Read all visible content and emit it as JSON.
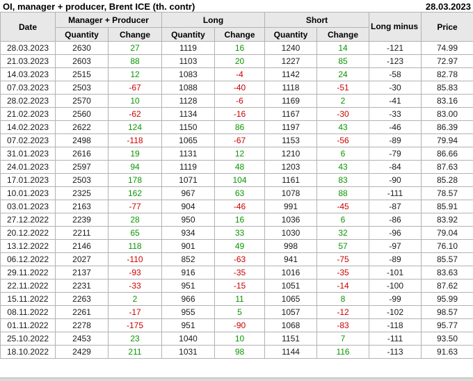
{
  "colors": {
    "positive_change": "#0a9600",
    "negative_change": "#cc0000",
    "header_bg": "#e8e8e8",
    "grid_line": "#b2b2b2",
    "text": "#1a1a1a"
  },
  "header_bar": {
    "title": "OI, manager + producer, Brent ICE (th. contr)",
    "report_date": "28.03.2023"
  },
  "chart_data": {
    "type": "table",
    "title": "OI, manager + producer, Brent ICE (th. contr)",
    "column_groups": [
      {
        "label": "Date",
        "colspan": 1
      },
      {
        "label": "Manager + Producer",
        "colspan": 2
      },
      {
        "label": "Long",
        "colspan": 2
      },
      {
        "label": "Short",
        "colspan": 2
      },
      {
        "label": "Long minus Short",
        "colspan": 1
      },
      {
        "label": "Price",
        "colspan": 1
      }
    ],
    "sub_headers": [
      "Quantity",
      "Change",
      "Quantity",
      "Change",
      "Quantity",
      "Change"
    ],
    "row_keys": [
      "date",
      "mp_quantity",
      "mp_change",
      "long_quantity",
      "long_change",
      "short_quantity",
      "short_change",
      "long_minus_short",
      "price"
    ],
    "signed_keys": [
      "mp_change",
      "long_change",
      "short_change"
    ],
    "rows": [
      {
        "date": "28.03.2023",
        "mp_quantity": "2630",
        "mp_change": "27",
        "long_quantity": "1119",
        "long_change": "16",
        "short_quantity": "1240",
        "short_change": "14",
        "long_minus_short": "-121",
        "price": "74.99"
      },
      {
        "date": "21.03.2023",
        "mp_quantity": "2603",
        "mp_change": "88",
        "long_quantity": "1103",
        "long_change": "20",
        "short_quantity": "1227",
        "short_change": "85",
        "long_minus_short": "-123",
        "price": "72.97"
      },
      {
        "date": "14.03.2023",
        "mp_quantity": "2515",
        "mp_change": "12",
        "long_quantity": "1083",
        "long_change": "-4",
        "short_quantity": "1142",
        "short_change": "24",
        "long_minus_short": "-58",
        "price": "82.78"
      },
      {
        "date": "07.03.2023",
        "mp_quantity": "2503",
        "mp_change": "-67",
        "long_quantity": "1088",
        "long_change": "-40",
        "short_quantity": "1118",
        "short_change": "-51",
        "long_minus_short": "-30",
        "price": "85.83"
      },
      {
        "date": "28.02.2023",
        "mp_quantity": "2570",
        "mp_change": "10",
        "long_quantity": "1128",
        "long_change": "-6",
        "short_quantity": "1169",
        "short_change": "2",
        "long_minus_short": "-41",
        "price": "83.16"
      },
      {
        "date": "21.02.2023",
        "mp_quantity": "2560",
        "mp_change": "-62",
        "long_quantity": "1134",
        "long_change": "-16",
        "short_quantity": "1167",
        "short_change": "-30",
        "long_minus_short": "-33",
        "price": "83.00"
      },
      {
        "date": "14.02.2023",
        "mp_quantity": "2622",
        "mp_change": "124",
        "long_quantity": "1150",
        "long_change": "86",
        "short_quantity": "1197",
        "short_change": "43",
        "long_minus_short": "-46",
        "price": "86.39"
      },
      {
        "date": "07.02.2023",
        "mp_quantity": "2498",
        "mp_change": "-118",
        "long_quantity": "1065",
        "long_change": "-67",
        "short_quantity": "1153",
        "short_change": "-56",
        "long_minus_short": "-89",
        "price": "79.94"
      },
      {
        "date": "31.01.2023",
        "mp_quantity": "2616",
        "mp_change": "19",
        "long_quantity": "1131",
        "long_change": "12",
        "short_quantity": "1210",
        "short_change": "6",
        "long_minus_short": "-79",
        "price": "86.66"
      },
      {
        "date": "24.01.2023",
        "mp_quantity": "2597",
        "mp_change": "94",
        "long_quantity": "1119",
        "long_change": "48",
        "short_quantity": "1203",
        "short_change": "43",
        "long_minus_short": "-84",
        "price": "87.63"
      },
      {
        "date": "17.01.2023",
        "mp_quantity": "2503",
        "mp_change": "178",
        "long_quantity": "1071",
        "long_change": "104",
        "short_quantity": "1161",
        "short_change": "83",
        "long_minus_short": "-90",
        "price": "85.28"
      },
      {
        "date": "10.01.2023",
        "mp_quantity": "2325",
        "mp_change": "162",
        "long_quantity": "967",
        "long_change": "63",
        "short_quantity": "1078",
        "short_change": "88",
        "long_minus_short": "-111",
        "price": "78.57"
      },
      {
        "date": "03.01.2023",
        "mp_quantity": "2163",
        "mp_change": "-77",
        "long_quantity": "904",
        "long_change": "-46",
        "short_quantity": "991",
        "short_change": "-45",
        "long_minus_short": "-87",
        "price": "85.91"
      },
      {
        "date": "27.12.2022",
        "mp_quantity": "2239",
        "mp_change": "28",
        "long_quantity": "950",
        "long_change": "16",
        "short_quantity": "1036",
        "short_change": "6",
        "long_minus_short": "-86",
        "price": "83.92"
      },
      {
        "date": "20.12.2022",
        "mp_quantity": "2211",
        "mp_change": "65",
        "long_quantity": "934",
        "long_change": "33",
        "short_quantity": "1030",
        "short_change": "32",
        "long_minus_short": "-96",
        "price": "79.04"
      },
      {
        "date": "13.12.2022",
        "mp_quantity": "2146",
        "mp_change": "118",
        "long_quantity": "901",
        "long_change": "49",
        "short_quantity": "998",
        "short_change": "57",
        "long_minus_short": "-97",
        "price": "76.10"
      },
      {
        "date": "06.12.2022",
        "mp_quantity": "2027",
        "mp_change": "-110",
        "long_quantity": "852",
        "long_change": "-63",
        "short_quantity": "941",
        "short_change": "-75",
        "long_minus_short": "-89",
        "price": "85.57"
      },
      {
        "date": "29.11.2022",
        "mp_quantity": "2137",
        "mp_change": "-93",
        "long_quantity": "916",
        "long_change": "-35",
        "short_quantity": "1016",
        "short_change": "-35",
        "long_minus_short": "-101",
        "price": "83.63"
      },
      {
        "date": "22.11.2022",
        "mp_quantity": "2231",
        "mp_change": "-33",
        "long_quantity": "951",
        "long_change": "-15",
        "short_quantity": "1051",
        "short_change": "-14",
        "long_minus_short": "-100",
        "price": "87.62"
      },
      {
        "date": "15.11.2022",
        "mp_quantity": "2263",
        "mp_change": "2",
        "long_quantity": "966",
        "long_change": "11",
        "short_quantity": "1065",
        "short_change": "8",
        "long_minus_short": "-99",
        "price": "95.99"
      },
      {
        "date": "08.11.2022",
        "mp_quantity": "2261",
        "mp_change": "-17",
        "long_quantity": "955",
        "long_change": "5",
        "short_quantity": "1057",
        "short_change": "-12",
        "long_minus_short": "-102",
        "price": "98.57"
      },
      {
        "date": "01.11.2022",
        "mp_quantity": "2278",
        "mp_change": "-175",
        "long_quantity": "951",
        "long_change": "-90",
        "short_quantity": "1068",
        "short_change": "-83",
        "long_minus_short": "-118",
        "price": "95.77"
      },
      {
        "date": "25.10.2022",
        "mp_quantity": "2453",
        "mp_change": "23",
        "long_quantity": "1040",
        "long_change": "10",
        "short_quantity": "1151",
        "short_change": "7",
        "long_minus_short": "-111",
        "price": "93.50"
      },
      {
        "date": "18.10.2022",
        "mp_quantity": "2429",
        "mp_change": "211",
        "long_quantity": "1031",
        "long_change": "98",
        "short_quantity": "1144",
        "short_change": "116",
        "long_minus_short": "-113",
        "price": "91.63"
      }
    ]
  }
}
